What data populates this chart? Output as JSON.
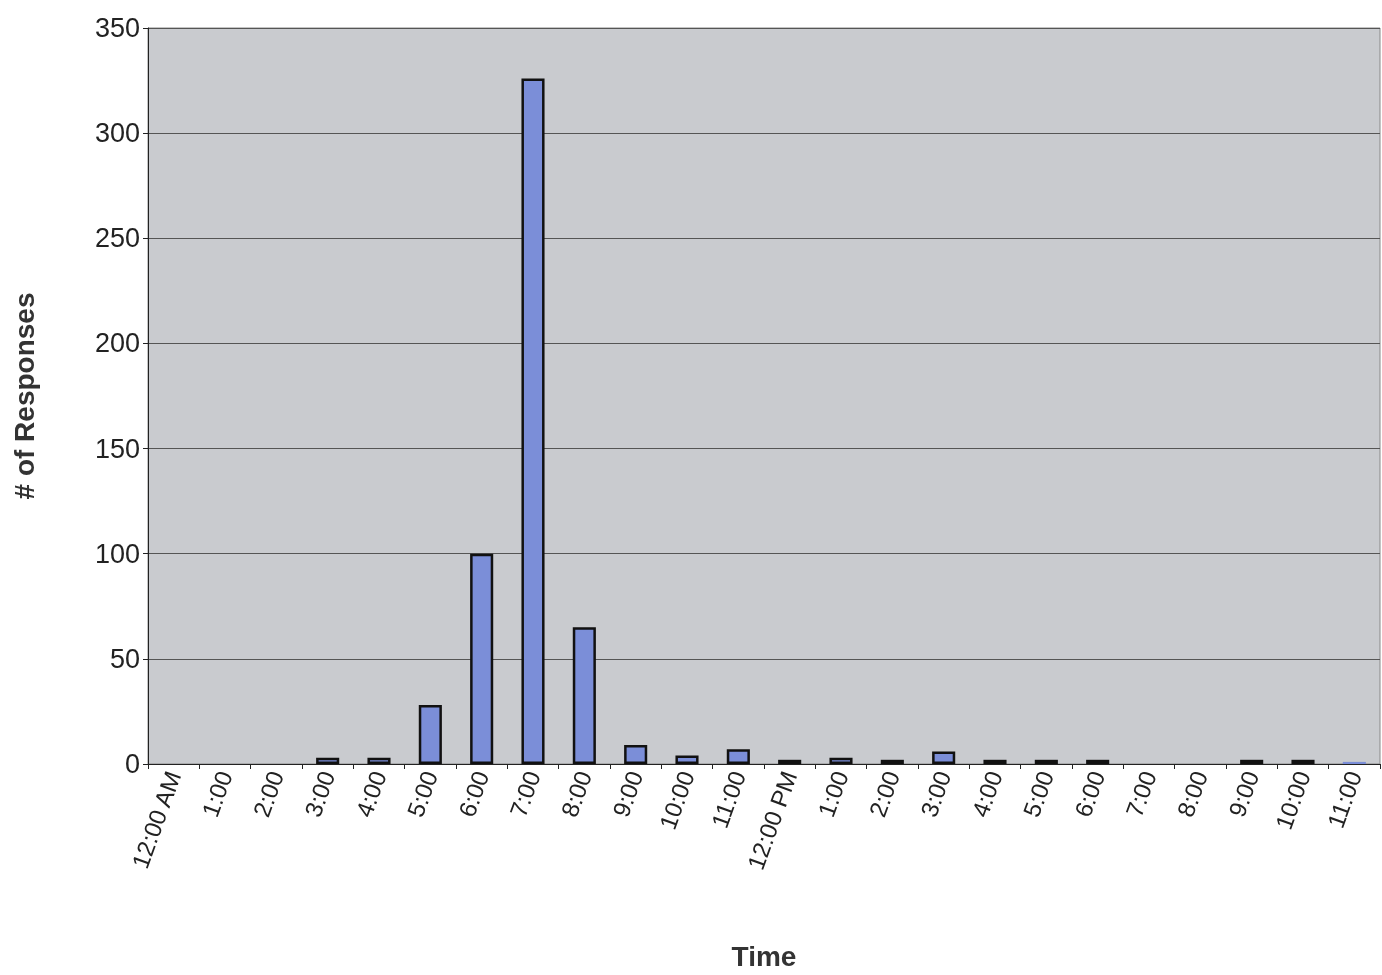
{
  "chart_data": {
    "type": "bar",
    "xlabel": "Time",
    "ylabel": "# of Responses",
    "categories": [
      "12:00 AM",
      "1:00",
      "2:00",
      "3:00",
      "4:00",
      "5:00",
      "6:00",
      "7:00",
      "8:00",
      "9:00",
      "10:00",
      "11:00",
      "12:00 PM",
      "1:00",
      "2:00",
      "3:00",
      "4:00",
      "5:00",
      "6:00",
      "7:00",
      "8:00",
      "9:00",
      "10:00",
      "11:00"
    ],
    "values": [
      0,
      0,
      0,
      3,
      3,
      28,
      100,
      326,
      65,
      9,
      4,
      7,
      2,
      3,
      2,
      6,
      2,
      2,
      2,
      0,
      0,
      2,
      2,
      1
    ],
    "color": "#7b8ed8",
    "ylim": [
      0,
      350
    ],
    "yticks": [
      0,
      50,
      100,
      150,
      200,
      250,
      300,
      350
    ],
    "grid": "y"
  }
}
